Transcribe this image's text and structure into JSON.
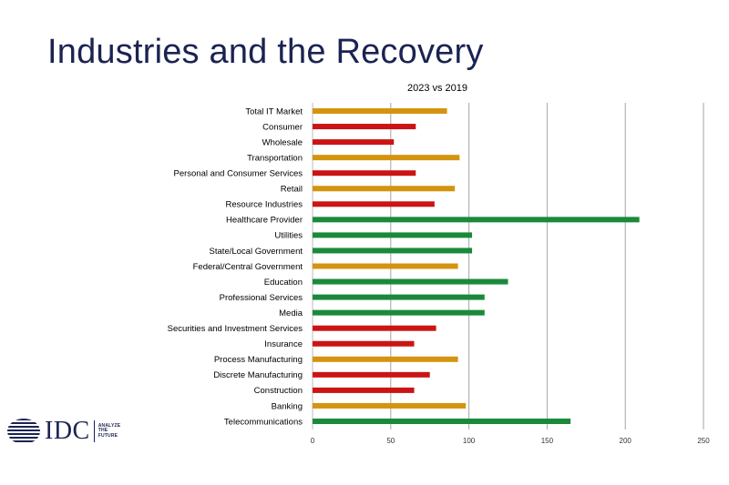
{
  "slide": {
    "title": "Industries and the Recovery"
  },
  "logo": {
    "icon": "globe-stripes-icon",
    "wordmark": "IDC",
    "tagline": "ANALYZE THE FUTURE",
    "color": "#1b2352"
  },
  "colors": {
    "red": "#cc1414",
    "orange": "#d4940f",
    "green": "#1a8a3a",
    "title": "#1b2352"
  },
  "chart_data": {
    "type": "bar",
    "orientation": "horizontal",
    "title": "2023 vs 2019",
    "xlabel": "",
    "ylabel": "",
    "xlim": [
      0,
      250
    ],
    "xticks": [
      0,
      50,
      100,
      150,
      200,
      250
    ],
    "grid": true,
    "legend": false,
    "categories": [
      "Total IT Market",
      "Consumer",
      "Wholesale",
      "Transportation",
      "Personal and Consumer Services",
      "Retail",
      "Resource Industries",
      "Healthcare Provider",
      "Utilities",
      "State/Local Government",
      "Federal/Central Government",
      "Education",
      "Professional Services",
      "Media",
      "Securities and Investment Services",
      "Insurance",
      "Process Manufacturing",
      "Discrete Manufacturing",
      "Construction",
      "Banking",
      "Telecommunications"
    ],
    "values": [
      86,
      66,
      52,
      94,
      66,
      91,
      78,
      209,
      102,
      102,
      93,
      125,
      110,
      110,
      79,
      65,
      93,
      75,
      65,
      98,
      165
    ],
    "bar_colors": [
      "orange",
      "red",
      "red",
      "orange",
      "red",
      "orange",
      "red",
      "green",
      "green",
      "green",
      "orange",
      "green",
      "green",
      "green",
      "red",
      "red",
      "orange",
      "red",
      "red",
      "orange",
      "green"
    ]
  }
}
